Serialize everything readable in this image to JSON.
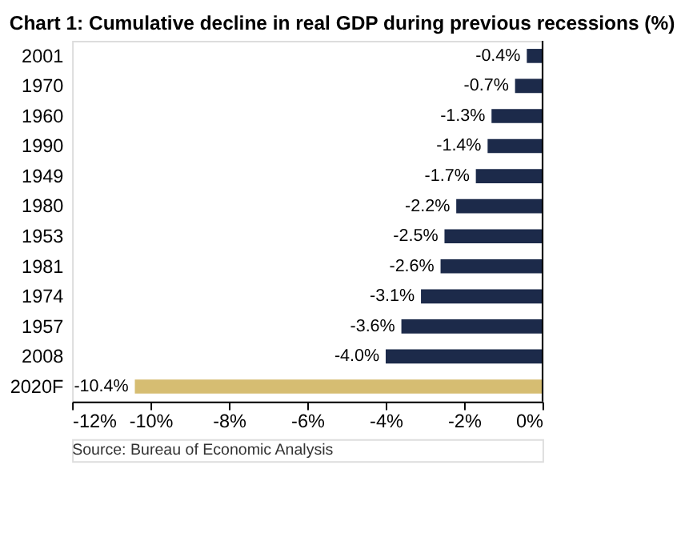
{
  "chart_data": {
    "type": "bar",
    "orientation": "horizontal",
    "title": "Chart 1: Cumulative decline in real GDP during previous recessions (%)",
    "categories": [
      "2001",
      "1970",
      "1960",
      "1990",
      "1949",
      "1980",
      "1953",
      "1981",
      "1974",
      "1957",
      "2008",
      "2020F"
    ],
    "values": [
      -0.4,
      -0.7,
      -1.3,
      -1.4,
      -1.7,
      -2.2,
      -2.5,
      -2.6,
      -3.1,
      -3.6,
      -4.0,
      -10.4
    ],
    "colors": [
      "#1c2a4a",
      "#1c2a4a",
      "#1c2a4a",
      "#1c2a4a",
      "#1c2a4a",
      "#1c2a4a",
      "#1c2a4a",
      "#1c2a4a",
      "#1c2a4a",
      "#1c2a4a",
      "#1c2a4a",
      "#d6bd72"
    ],
    "value_labels": [
      "-0.4%",
      "-0.7%",
      "-1.3%",
      "-1.4%",
      "-1.7%",
      "-2.2%",
      "-2.5%",
      "-2.6%",
      "-3.1%",
      "-3.6%",
      "-4.0%",
      "-10.4%"
    ],
    "xlim": [
      -12,
      0
    ],
    "xticks": [
      {
        "value": -12,
        "label": "-12%"
      },
      {
        "value": -10,
        "label": "-10%"
      },
      {
        "value": -8,
        "label": "-8%"
      },
      {
        "value": -6,
        "label": "-6%"
      },
      {
        "value": -4,
        "label": "-4%"
      },
      {
        "value": -2,
        "label": "-2%"
      },
      {
        "value": 0,
        "label": "0%"
      }
    ],
    "grid": false,
    "annotations": [
      "Source: Bureau of Economic Analysis"
    ]
  }
}
